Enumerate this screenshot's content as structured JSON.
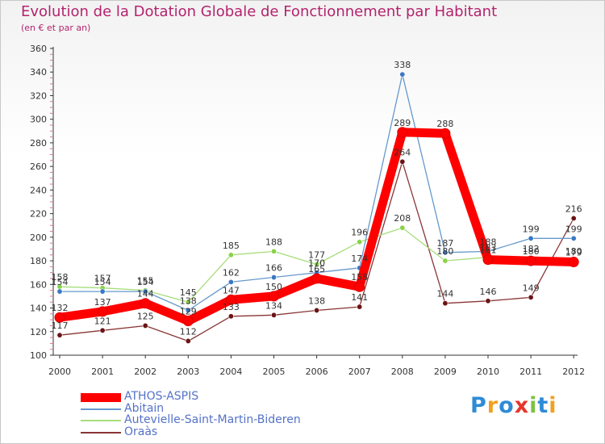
{
  "chart_data": {
    "type": "line",
    "title": "Evolution de la Dotation Globale de Fonctionnement par Habitant",
    "subtitle": "(en € et par an)",
    "categories": [
      "2000",
      "2001",
      "2002",
      "2003",
      "2004",
      "2005",
      "2006",
      "2007",
      "2008",
      "2009",
      "2010",
      "2011",
      "2012"
    ],
    "ylim": [
      100,
      360
    ],
    "yticks": [
      100,
      120,
      140,
      160,
      180,
      200,
      220,
      240,
      260,
      280,
      300,
      320,
      340,
      360
    ],
    "grid": false,
    "legend_position": "bottom-left",
    "series": [
      {
        "name": "ATHOS-ASPIS",
        "color": "#ff0000",
        "values": [
          132,
          137,
          144,
          129,
          147,
          150,
          165,
          158,
          289,
          288,
          181,
          180,
          179
        ],
        "labels": [
          "132",
          "137",
          "144",
          "129",
          "147",
          "150",
          "165",
          "158",
          "289",
          "288",
          "181",
          "180",
          "179"
        ]
      },
      {
        "name": "Abitain",
        "color": "#6699cc",
        "values": [
          154,
          154,
          154,
          138,
          162,
          166,
          170,
          174,
          338,
          187,
          188,
          199,
          199
        ],
        "labels": [
          "154",
          "154",
          "154",
          "138",
          "162",
          "166",
          "170",
          "174",
          "338",
          "187",
          "188",
          "199",
          "199"
        ]
      },
      {
        "name": "Autevielle-Saint-Martin-Bideren",
        "color": "#99dd55",
        "values": [
          158,
          157,
          155,
          145,
          185,
          188,
          177,
          196,
          208,
          180,
          183,
          182,
          180
        ],
        "labels": [
          "158",
          "157",
          "155",
          "145",
          "185",
          "188",
          "177",
          "196",
          "208",
          "180",
          "183",
          "182",
          "180"
        ]
      },
      {
        "name": "Oraàs",
        "color": "#7a1a1a",
        "values": [
          117,
          121,
          125,
          112,
          133,
          134,
          138,
          141,
          264,
          144,
          146,
          149,
          216
        ],
        "labels": [
          "117",
          "121",
          "125",
          "112",
          "133",
          "134",
          "138",
          "141",
          "264",
          "144",
          "146",
          "149",
          "216"
        ]
      }
    ]
  },
  "logo": {
    "text": "Proxiti",
    "colors": [
      "#2e8bd6",
      "#f2a01e",
      "#2e8bd6",
      "#e8352a",
      "#7cc242",
      "#2e8bd6",
      "#f2a01e"
    ]
  }
}
